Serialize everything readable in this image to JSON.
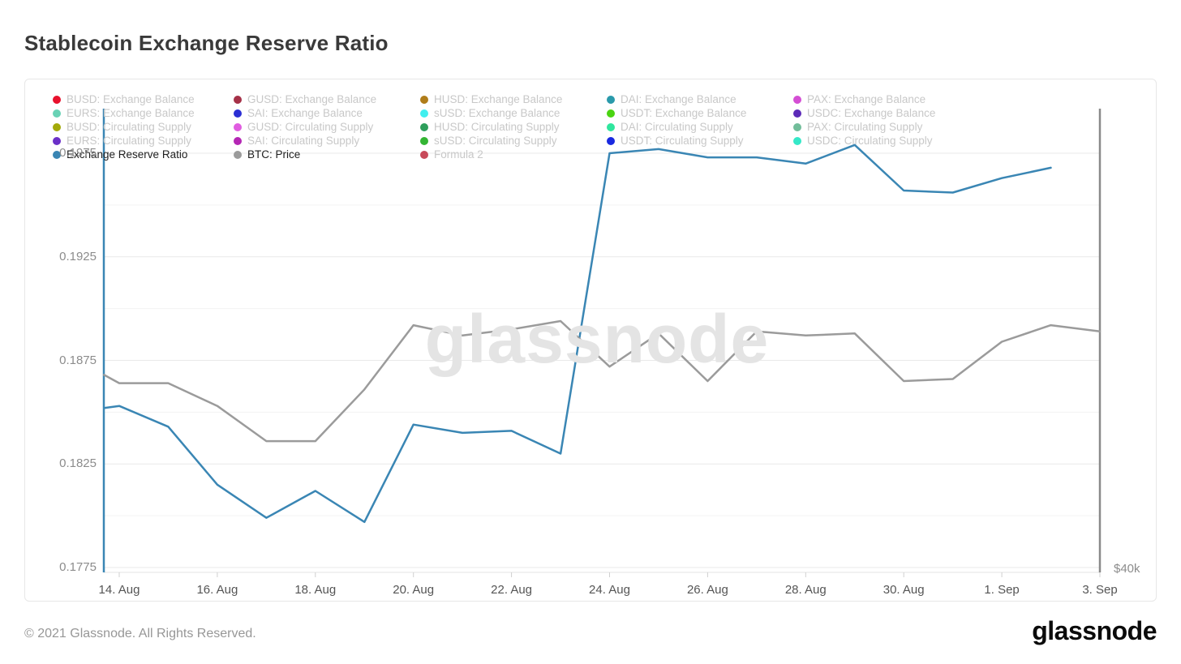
{
  "page": {
    "title": "Stablecoin Exchange Reserve Ratio",
    "watermark": "glassnode",
    "footer_copyright": "© 2021 Glassnode. All Rights Reserved.",
    "footer_logo": "glassnode"
  },
  "legend": {
    "columns": 5,
    "inactive_text_color": "#c8c8c8",
    "active_text_color": "#1f1f1f",
    "items": [
      {
        "label": "BUSD: Exchange Balance",
        "color": "#e8112d",
        "active": false
      },
      {
        "label": "GUSD: Exchange Balance",
        "color": "#a53148",
        "active": false
      },
      {
        "label": "HUSD: Exchange Balance",
        "color": "#b07d1a",
        "active": false
      },
      {
        "label": "DAI: Exchange Balance",
        "color": "#2a9aab",
        "active": false
      },
      {
        "label": "PAX: Exchange Balance",
        "color": "#d44ed4",
        "active": false
      },
      {
        "label": "EURS: Exchange Balance",
        "color": "#69d2b5",
        "active": false
      },
      {
        "label": "SAI: Exchange Balance",
        "color": "#2b2fd4",
        "active": false
      },
      {
        "label": "sUSD: Exchange Balance",
        "color": "#40efef",
        "active": false
      },
      {
        "label": "USDT: Exchange Balance",
        "color": "#4ad411",
        "active": false
      },
      {
        "label": "USDC: Exchange Balance",
        "color": "#5c2bb8",
        "active": false
      },
      {
        "label": "BUSD: Circulating Supply",
        "color": "#a3aa0a",
        "active": false
      },
      {
        "label": "GUSD: Circulating Supply",
        "color": "#e05ce0",
        "active": false
      },
      {
        "label": "HUSD: Circulating Supply",
        "color": "#2e9e5b",
        "active": false
      },
      {
        "label": "DAI: Circulating Supply",
        "color": "#30e69e",
        "active": false
      },
      {
        "label": "PAX: Circulating Supply",
        "color": "#72bd9a",
        "active": false
      },
      {
        "label": "EURS: Circulating Supply",
        "color": "#6b30c8",
        "active": false
      },
      {
        "label": "SAI: Circulating Supply",
        "color": "#b426b4",
        "active": false
      },
      {
        "label": "sUSD: Circulating Supply",
        "color": "#33b533",
        "active": false
      },
      {
        "label": "USDT: Circulating Supply",
        "color": "#1929e0",
        "active": false
      },
      {
        "label": "USDC: Circulating Supply",
        "color": "#35e8c8",
        "active": false
      },
      {
        "label": "Exchange Reserve Ratio",
        "color": "#3a86b4",
        "active": true
      },
      {
        "label": "BTC: Price",
        "color": "#9b9b9b",
        "active": true
      },
      {
        "label": "Formula 2",
        "color": "#c84a5a",
        "active": false
      }
    ]
  },
  "chart_data": {
    "type": "line",
    "title": "Stablecoin Exchange Reserve Ratio",
    "grid": true,
    "legend_position": "top",
    "x_unit": "days since 14. Aug",
    "x_tick_labels": [
      "14. Aug",
      "16. Aug",
      "18. Aug",
      "20. Aug",
      "22. Aug",
      "24. Aug",
      "26. Aug",
      "28. Aug",
      "30. Aug",
      "1. Sep",
      "3. Sep"
    ],
    "x_tick_days": [
      0,
      2,
      4,
      6,
      8,
      10,
      12,
      14,
      16,
      18,
      20
    ],
    "y_left": {
      "tick_labels": [
        "0.1975",
        "0.1925",
        "0.1875",
        "0.1825",
        "0.1775"
      ],
      "tick_values": [
        0.1975,
        0.1925,
        0.1875,
        0.1825,
        0.1775
      ],
      "minor_step": 0.0025,
      "range_shown": [
        0.1775,
        0.1998
      ],
      "axis_line_color": "#3a86b4"
    },
    "y_right": {
      "tick_labels": [
        "$40k"
      ],
      "axis_line_color": "#8a8a8a"
    },
    "series": [
      {
        "name": "Exchange Reserve Ratio",
        "color": "#3a86b4",
        "axis": "left",
        "points": [
          {
            "d": -0.31,
            "v": 0.1852
          },
          {
            "d": 0,
            "v": 0.1853
          },
          {
            "d": 1,
            "v": 0.1843
          },
          {
            "d": 2,
            "v": 0.1815
          },
          {
            "d": 3,
            "v": 0.1799
          },
          {
            "d": 4,
            "v": 0.1812
          },
          {
            "d": 5,
            "v": 0.1797
          },
          {
            "d": 6,
            "v": 0.1844
          },
          {
            "d": 7,
            "v": 0.184
          },
          {
            "d": 8,
            "v": 0.1841
          },
          {
            "d": 9,
            "v": 0.183
          },
          {
            "d": 10,
            "v": 0.1975
          },
          {
            "d": 11,
            "v": 0.1977
          },
          {
            "d": 12,
            "v": 0.1973
          },
          {
            "d": 13,
            "v": 0.1973
          },
          {
            "d": 14,
            "v": 0.197
          },
          {
            "d": 15,
            "v": 0.1979
          },
          {
            "d": 16,
            "v": 0.1957
          },
          {
            "d": 17,
            "v": 0.1956
          },
          {
            "d": 18,
            "v": 0.1963
          },
          {
            "d": 19,
            "v": 0.1968
          }
        ]
      },
      {
        "name": "BTC: Price",
        "color": "#9b9b9b",
        "axis": "right",
        "note": "only the $40k tick is visible on the right axis; values recorded on the left-axis overlay scale",
        "points": [
          {
            "d": -0.31,
            "v": 0.1868
          },
          {
            "d": 0,
            "v": 0.1864
          },
          {
            "d": 1,
            "v": 0.1864
          },
          {
            "d": 2,
            "v": 0.1853
          },
          {
            "d": 3,
            "v": 0.1836
          },
          {
            "d": 4,
            "v": 0.1836
          },
          {
            "d": 5,
            "v": 0.1861
          },
          {
            "d": 6,
            "v": 0.1892
          },
          {
            "d": 7,
            "v": 0.1887
          },
          {
            "d": 8,
            "v": 0.189
          },
          {
            "d": 9,
            "v": 0.1894
          },
          {
            "d": 10,
            "v": 0.1872
          },
          {
            "d": 11,
            "v": 0.1888
          },
          {
            "d": 12,
            "v": 0.1865
          },
          {
            "d": 13,
            "v": 0.1889
          },
          {
            "d": 14,
            "v": 0.1887
          },
          {
            "d": 15,
            "v": 0.1888
          },
          {
            "d": 16,
            "v": 0.1865
          },
          {
            "d": 17,
            "v": 0.1866
          },
          {
            "d": 18,
            "v": 0.1884
          },
          {
            "d": 19,
            "v": 0.1892
          },
          {
            "d": 20,
            "v": 0.1889
          }
        ]
      }
    ]
  }
}
